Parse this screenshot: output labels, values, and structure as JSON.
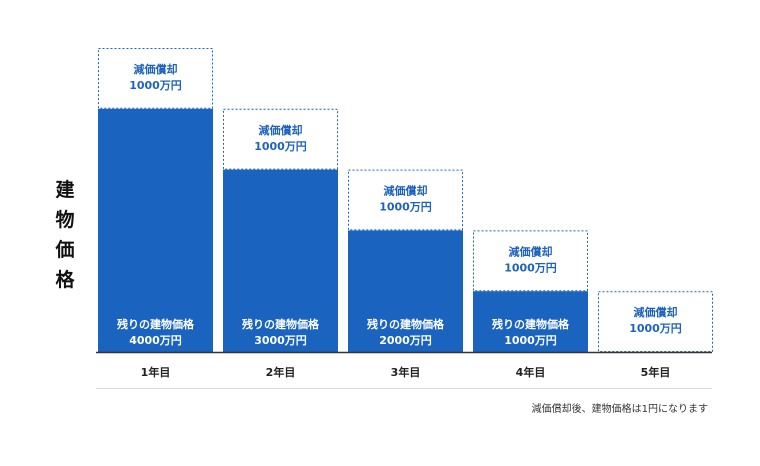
{
  "chart_data": {
    "type": "bar",
    "ylabel": "建物価格",
    "categories": [
      "1年目",
      "2年目",
      "3年目",
      "4年目",
      "5年目"
    ],
    "unit": "万円",
    "series": [
      {
        "name": "残りの建物価格",
        "values": [
          4000,
          3000,
          2000,
          1000,
          0
        ]
      },
      {
        "name": "減価償却",
        "values": [
          1000,
          1000,
          1000,
          1000,
          1000
        ]
      }
    ],
    "labels": {
      "depreciation": [
        "減価償却",
        "1000万円"
      ],
      "remaining": [
        [
          "残りの建物価格",
          "4000万円"
        ],
        [
          "残りの建物価格",
          "3000万円"
        ],
        [
          "残りの建物価格",
          "2000万円"
        ],
        [
          "残りの建物価格",
          "1000万円"
        ],
        null
      ]
    },
    "ylim": [
      0,
      5000
    ],
    "colors": {
      "remaining": "#1a63bf",
      "depreciation_border": "#1a63bf",
      "axis": "#333333"
    },
    "note": "減価償却後、建物価格は1円になります"
  }
}
